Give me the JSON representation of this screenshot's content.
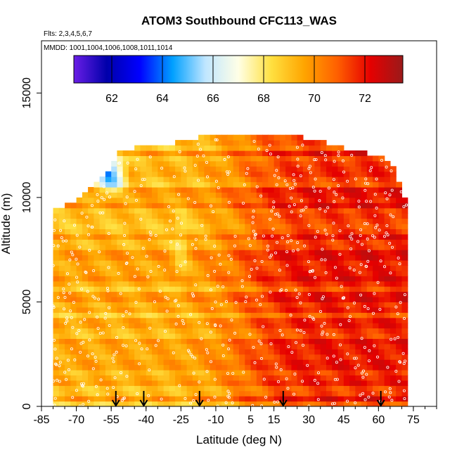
{
  "chart_data": {
    "type": "heatmap",
    "title": "ATOM3 Southbound CFC113_WAS",
    "flights_label": "Flts: 2,3,4,5,6,7",
    "dates_label": "MMDD: 1001,1004,1006,1008,1011,1014",
    "xlabel": "Latitude (deg N)",
    "ylabel": "Altitude (m)",
    "xlim": [
      -85,
      85
    ],
    "ylim": [
      0,
      17500
    ],
    "x_ticks": [
      -85,
      -70,
      -55,
      -40,
      -25,
      -10,
      5,
      15,
      30,
      45,
      60,
      75
    ],
    "x_tick_labels": [
      "-85",
      "-70",
      "-55",
      "-40",
      "-25",
      "-10",
      "5",
      "15",
      "30",
      "45",
      "60",
      "75"
    ],
    "y_ticks": [
      0,
      5000,
      10000,
      15000
    ],
    "y_tick_labels": [
      "0",
      "5000",
      "10000",
      "15000"
    ],
    "colorbar": {
      "range": [
        60.5,
        73.5
      ],
      "ticks": [
        62,
        64,
        66,
        68,
        70,
        72
      ],
      "tick_labels": [
        "62",
        "64",
        "66",
        "68",
        "70",
        "72"
      ],
      "colors": [
        "#6a1ee6",
        "#0000aa",
        "#0000ff",
        "#00a0ff",
        "#c0e6ff",
        "#ffffe6",
        "#ffe040",
        "#ffa500",
        "#ff6000",
        "#e60000",
        "#9a1a1a"
      ]
    },
    "arrows_at_latitude": [
      -53,
      -41,
      -17,
      19,
      61
    ],
    "envelope": [
      {
        "lat": -85,
        "top": 0
      },
      {
        "lat": -80,
        "top": 9200
      },
      {
        "lat": -70,
        "top": 9700
      },
      {
        "lat": -62,
        "top": 10600
      },
      {
        "lat": -57,
        "top": 11000
      },
      {
        "lat": -52,
        "top": 12000
      },
      {
        "lat": -45,
        "top": 12300
      },
      {
        "lat": -30,
        "top": 12400
      },
      {
        "lat": -10,
        "top": 12950
      },
      {
        "lat": 20,
        "top": 12950
      },
      {
        "lat": 40,
        "top": 12400
      },
      {
        "lat": 65,
        "top": 11700
      },
      {
        "lat": 72,
        "top": 9700
      }
    ],
    "field_summary": "CFC113 mixing ratios mostly 68-72; higher values (reddish, ~71-73) north of 10 N; lower values (~64-68, blue/white) near 11000-12000 m around 60-55 S"
  }
}
